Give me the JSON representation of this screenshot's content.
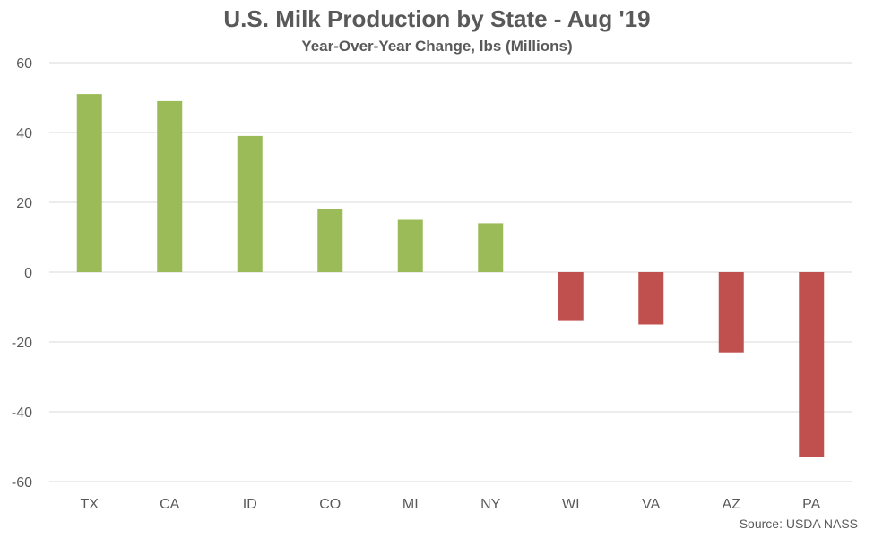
{
  "chart_data": {
    "type": "bar",
    "title": "U.S. Milk Production by State - Aug '19",
    "subtitle": "Year-Over-Year Change, lbs (Millions)",
    "source": "Source: USDA NASS",
    "xlabel": "",
    "ylabel": "",
    "categories": [
      "TX",
      "CA",
      "ID",
      "CO",
      "MI",
      "NY",
      "WI",
      "VA",
      "AZ",
      "PA"
    ],
    "values": [
      51,
      49,
      39,
      18,
      15,
      14,
      -14,
      -15,
      -23,
      -53
    ],
    "ylim": [
      -60,
      60
    ],
    "yticks": [
      60,
      40,
      20,
      0,
      -20,
      -40,
      -60
    ],
    "grid": true,
    "legend": "none",
    "colors": {
      "positive": "#9BBB59",
      "negative": "#C0504D",
      "gridline": "#D9D9D9",
      "text": "#595959"
    }
  }
}
